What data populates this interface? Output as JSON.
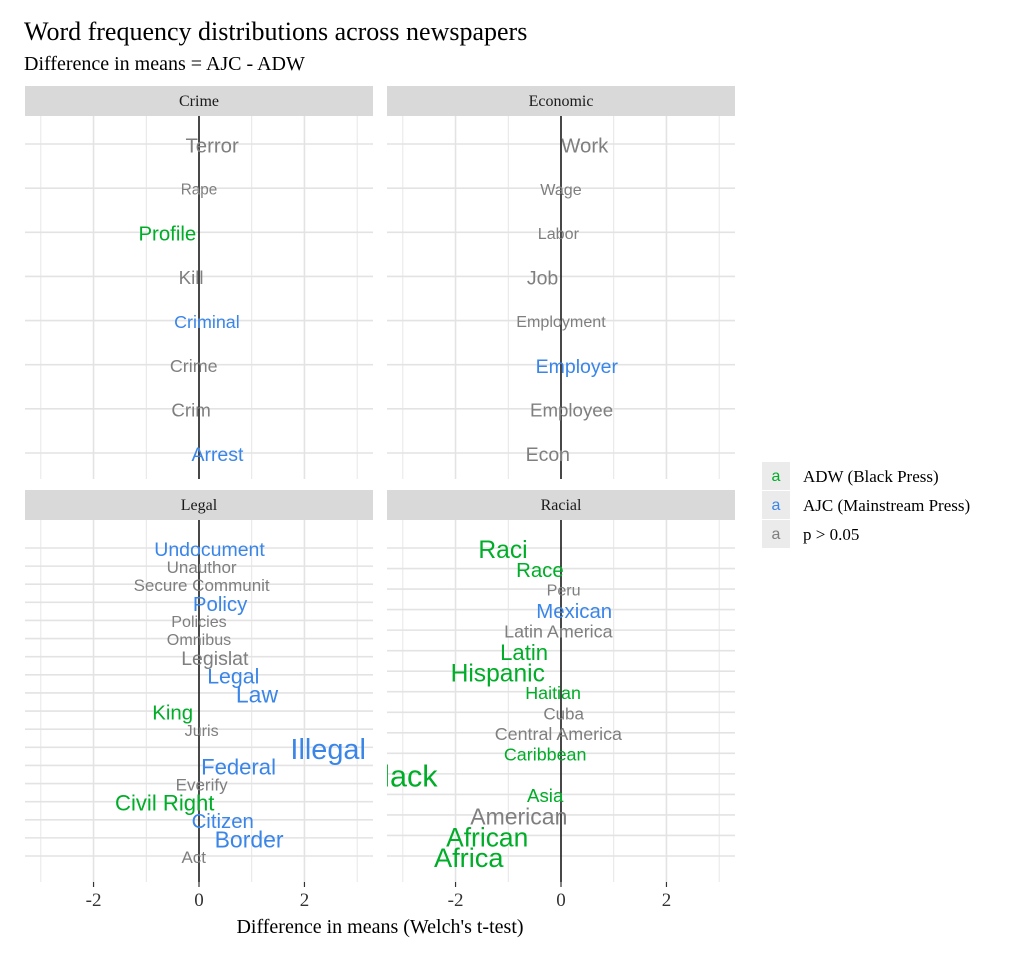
{
  "chart_data": {
    "type": "scatter",
    "title": "Word frequency distributions across newspapers",
    "subtitle": "Difference in means = AJC - ADW",
    "xlabel": "Difference in means (Welch's t-test)",
    "xlim": [
      -3.3,
      3.3
    ],
    "x_ticks": [
      -2,
      0,
      2
    ],
    "x_tick_labels": [
      "-2",
      "0",
      "2"
    ],
    "grid": true,
    "legend_position": "right",
    "legend": [
      {
        "key": "adw",
        "symbol": "a",
        "label": "ADW (Black Press)",
        "color": "#00ad28"
      },
      {
        "key": "ajc",
        "symbol": "a",
        "label": "AJC (Mainstream Press)",
        "color": "#3a86e8"
      },
      {
        "key": "ns",
        "symbol": "a",
        "label": "p > 0.05",
        "color": "#7f7f7f"
      }
    ],
    "panels": [
      {
        "title": "Crime",
        "words": [
          {
            "label": "Terror",
            "x": 0.25,
            "group": "ns",
            "size": 1.2
          },
          {
            "label": "Rape",
            "x": 0.0,
            "group": "ns",
            "size": 0.9
          },
          {
            "label": "Profile",
            "x": -0.6,
            "group": "adw",
            "size": 1.2
          },
          {
            "label": "Kill",
            "x": -0.15,
            "group": "ns",
            "size": 1.1
          },
          {
            "label": "Criminal",
            "x": 0.15,
            "group": "ajc",
            "size": 1.05
          },
          {
            "label": "Crime",
            "x": -0.1,
            "group": "ns",
            "size": 1.05
          },
          {
            "label": "Crim",
            "x": -0.15,
            "group": "ns",
            "size": 1.1
          },
          {
            "label": "Arrest",
            "x": 0.35,
            "group": "ajc",
            "size": 1.15
          }
        ]
      },
      {
        "title": "Economic",
        "words": [
          {
            "label": "Work",
            "x": 0.45,
            "group": "ns",
            "size": 1.2
          },
          {
            "label": "Wage",
            "x": 0.0,
            "group": "ns",
            "size": 0.95
          },
          {
            "label": "Labor",
            "x": -0.05,
            "group": "ns",
            "size": 0.95
          },
          {
            "label": "Job",
            "x": -0.35,
            "group": "ns",
            "size": 1.15
          },
          {
            "label": "Employment",
            "x": 0.0,
            "group": "ns",
            "size": 0.95
          },
          {
            "label": "Employer",
            "x": 0.3,
            "group": "ajc",
            "size": 1.15
          },
          {
            "label": "Employee",
            "x": 0.2,
            "group": "ns",
            "size": 1.1
          },
          {
            "label": "Econ",
            "x": -0.25,
            "group": "ns",
            "size": 1.15
          }
        ]
      },
      {
        "title": "Legal",
        "words": [
          {
            "label": "Undocument",
            "x": 0.2,
            "group": "ajc",
            "size": 1.15
          },
          {
            "label": "Unauthor",
            "x": 0.05,
            "group": "ns",
            "size": 1.0
          },
          {
            "label": "Secure Communit",
            "x": 0.05,
            "group": "ns",
            "size": 1.0
          },
          {
            "label": "Policy",
            "x": 0.4,
            "group": "ajc",
            "size": 1.2
          },
          {
            "label": "Policies",
            "x": 0.0,
            "group": "ns",
            "size": 0.95
          },
          {
            "label": "Omnibus",
            "x": 0.0,
            "group": "ns",
            "size": 0.95
          },
          {
            "label": "Legislat",
            "x": 0.3,
            "group": "ns",
            "size": 1.15
          },
          {
            "label": "Legal",
            "x": 0.65,
            "group": "ajc",
            "size": 1.25
          },
          {
            "label": "Law",
            "x": 1.1,
            "group": "ajc",
            "size": 1.35
          },
          {
            "label": "King",
            "x": -0.5,
            "group": "adw",
            "size": 1.2
          },
          {
            "label": "Juris",
            "x": 0.05,
            "group": "ns",
            "size": 0.95
          },
          {
            "label": "Illegal",
            "x": 2.45,
            "group": "ajc",
            "size": 1.7
          },
          {
            "label": "Federal",
            "x": 0.75,
            "group": "ajc",
            "size": 1.3
          },
          {
            "label": "Everify",
            "x": 0.05,
            "group": "ns",
            "size": 1.0
          },
          {
            "label": "Civil Right",
            "x": -0.65,
            "group": "adw",
            "size": 1.3
          },
          {
            "label": "Citizen",
            "x": 0.45,
            "group": "ajc",
            "size": 1.2
          },
          {
            "label": "Border",
            "x": 0.95,
            "group": "ajc",
            "size": 1.35
          },
          {
            "label": "Act",
            "x": -0.1,
            "group": "ns",
            "size": 1.0
          }
        ]
      },
      {
        "title": "Racial",
        "words": [
          {
            "label": "Raci",
            "x": -1.1,
            "group": "adw",
            "size": 1.45
          },
          {
            "label": "Race",
            "x": -0.4,
            "group": "adw",
            "size": 1.2
          },
          {
            "label": "Peru",
            "x": 0.05,
            "group": "ns",
            "size": 0.95
          },
          {
            "label": "Mexican",
            "x": 0.25,
            "group": "ajc",
            "size": 1.2
          },
          {
            "label": "Latin America",
            "x": -0.05,
            "group": "ns",
            "size": 1.05
          },
          {
            "label": "Latin",
            "x": -0.7,
            "group": "adw",
            "size": 1.3
          },
          {
            "label": "Hispanic",
            "x": -1.2,
            "group": "adw",
            "size": 1.45
          },
          {
            "label": "Haitian",
            "x": -0.15,
            "group": "adw",
            "size": 1.05
          },
          {
            "label": "Cuba",
            "x": 0.05,
            "group": "ns",
            "size": 1.0
          },
          {
            "label": "Central America",
            "x": -0.05,
            "group": "ns",
            "size": 1.05
          },
          {
            "label": "Caribbean",
            "x": -0.3,
            "group": "adw",
            "size": 1.05
          },
          {
            "label": "Black",
            "x": -3.05,
            "group": "adw",
            "size": 1.8
          },
          {
            "label": "Asia",
            "x": -0.3,
            "group": "adw",
            "size": 1.1
          },
          {
            "label": "American",
            "x": -0.8,
            "group": "ns",
            "size": 1.35
          },
          {
            "label": "African",
            "x": -1.4,
            "group": "adw",
            "size": 1.55
          },
          {
            "label": "Africa",
            "x": -1.75,
            "group": "adw",
            "size": 1.6
          }
        ]
      }
    ]
  }
}
